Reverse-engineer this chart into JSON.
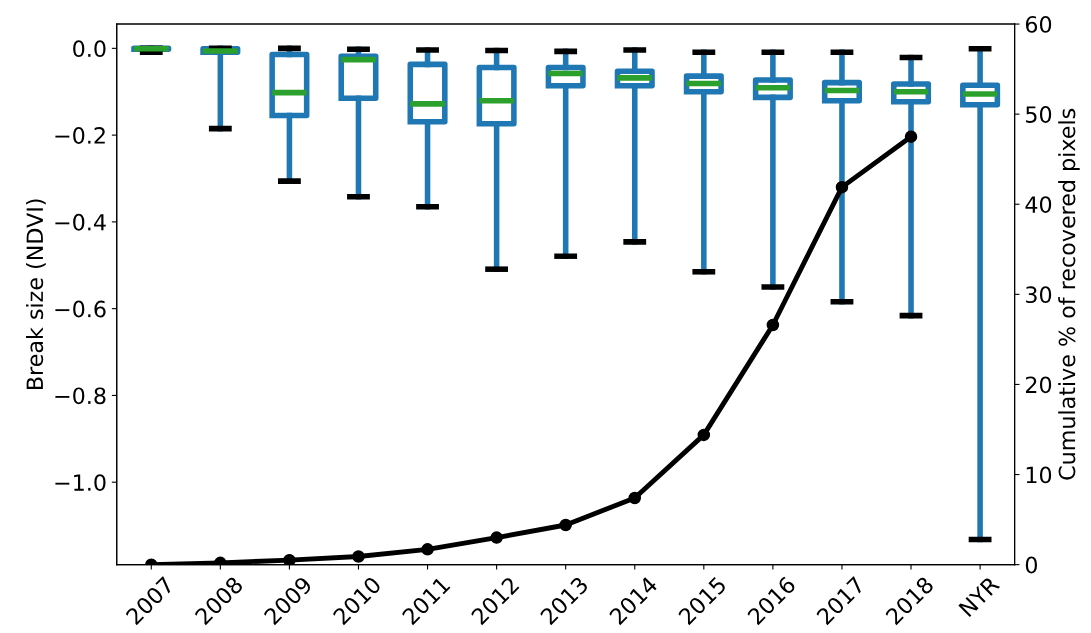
{
  "chart_data": {
    "type": "box",
    "ylabel": "Break size (NDVI)",
    "y2label": "Cumulative % of recovered pixels",
    "categories": [
      "2007",
      "2008",
      "2009",
      "2010",
      "2011",
      "2012",
      "2013",
      "2014",
      "2015",
      "2016",
      "2017",
      "2018",
      "NYR"
    ],
    "color": "#1f77b4",
    "boxes": [
      {
        "low": -0.009,
        "q1": -0.002,
        "median": -0.001,
        "q3": 0.0,
        "high": 0.0
      },
      {
        "low": -0.185,
        "q1": -0.009,
        "median": -0.006,
        "q3": -0.001,
        "high": 0.0
      },
      {
        "low": -0.306,
        "q1": -0.155,
        "median": -0.102,
        "q3": -0.014,
        "high": 0.0
      },
      {
        "low": -0.342,
        "q1": -0.115,
        "median": -0.026,
        "q3": -0.018,
        "high": -0.002
      },
      {
        "low": -0.365,
        "q1": -0.169,
        "median": -0.128,
        "q3": -0.037,
        "high": -0.004
      },
      {
        "low": -0.509,
        "q1": -0.174,
        "median": -0.121,
        "q3": -0.044,
        "high": -0.005
      },
      {
        "low": -0.479,
        "q1": -0.086,
        "median": -0.058,
        "q3": -0.044,
        "high": -0.007
      },
      {
        "low": -0.446,
        "q1": -0.086,
        "median": -0.068,
        "q3": -0.053,
        "high": -0.004
      },
      {
        "low": -0.515,
        "q1": -0.1,
        "median": -0.081,
        "q3": -0.064,
        "high": -0.009
      },
      {
        "low": -0.55,
        "q1": -0.113,
        "median": -0.091,
        "q3": -0.073,
        "high": -0.009
      },
      {
        "low": -0.584,
        "q1": -0.121,
        "median": -0.097,
        "q3": -0.079,
        "high": -0.009
      },
      {
        "low": -0.616,
        "q1": -0.123,
        "median": -0.1,
        "q3": -0.082,
        "high": -0.021
      },
      {
        "low": -1.132,
        "q1": -0.13,
        "median": -0.105,
        "q3": -0.085,
        "high": -0.001
      }
    ],
    "series": [
      {
        "type": "line",
        "axis": "y2",
        "color": "#000000",
        "marker": "circle",
        "values": [
          0.0,
          0.2,
          0.5,
          0.9,
          1.7,
          3.0,
          4.4,
          7.4,
          14.4,
          26.6,
          41.9,
          47.5,
          null
        ]
      }
    ],
    "ylim": [
      -1.19,
      0.056
    ],
    "yticks": [
      {
        "value": -1.0,
        "label": "−1.0"
      },
      {
        "value": -0.8,
        "label": "−0.8"
      },
      {
        "value": -0.6,
        "label": "−0.6"
      },
      {
        "value": -0.4,
        "label": "−0.4"
      },
      {
        "value": -0.2,
        "label": "−0.2"
      },
      {
        "value": 0.0,
        "label": "0.0"
      }
    ],
    "y2lim": [
      0,
      60
    ],
    "y2ticks": [
      0,
      10,
      20,
      30,
      40,
      50,
      60
    ],
    "grid": false
  }
}
